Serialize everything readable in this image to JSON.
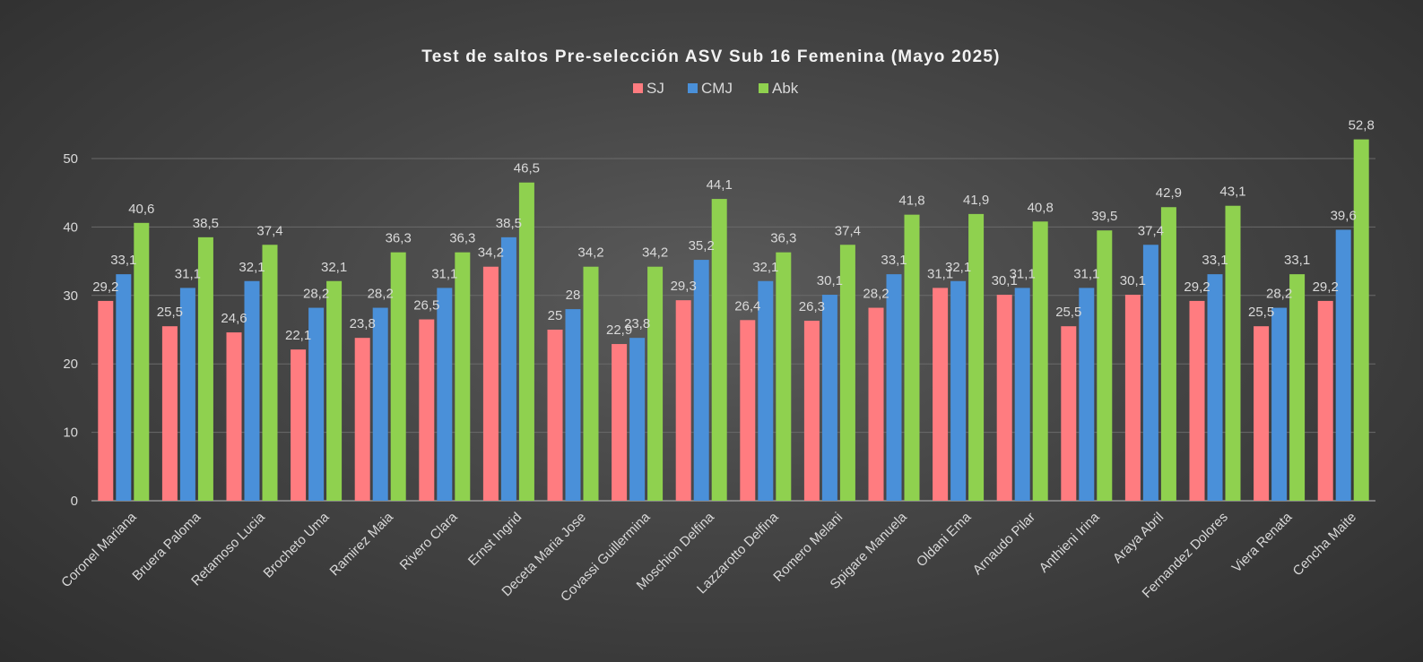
{
  "chart_data": {
    "type": "bar",
    "title": "Test de saltos Pre-selección ASV Sub 16 Femenina (Mayo 2025)",
    "xlabel": "",
    "ylabel": "",
    "ylim": [
      0,
      55
    ],
    "yticks": [
      0,
      10,
      20,
      30,
      40,
      50
    ],
    "grid": true,
    "legend_position": "top",
    "categories": [
      "Coronel Mariana",
      "Bruera Paloma",
      "Retamoso Lucia",
      "Brocheto Uma",
      "Ramirez Maia",
      "Rivero Clara",
      "Ernst Ingrid",
      "Deceta Maria Jose",
      "Covassi Guillermina",
      "Moschion Delfina",
      "Lazzarotto Delfina",
      "Romero Melani",
      "Spigare Manuela",
      "Oldani Ema",
      "Arnaudo Pilar",
      "Anthieni Irina",
      "Araya Abril",
      "Fernandez Dolores",
      "Viera Renata",
      "Cencha Maite"
    ],
    "series": [
      {
        "name": "SJ",
        "color": "#ff7c80",
        "values": [
          29.2,
          25.5,
          24.6,
          22.1,
          23.8,
          26.5,
          34.2,
          25,
          22.9,
          29.3,
          26.4,
          26.3,
          28.2,
          31.1,
          30.1,
          25.5,
          30.1,
          29.2,
          25.5,
          29.2
        ]
      },
      {
        "name": "CMJ",
        "color": "#4a90d9",
        "values": [
          33.1,
          31.1,
          32.1,
          28.2,
          28.2,
          31.1,
          38.5,
          28,
          23.8,
          35.2,
          32.1,
          30.1,
          33.1,
          32.1,
          31.1,
          31.1,
          37.4,
          33.1,
          28.2,
          39.6
        ]
      },
      {
        "name": "Abk",
        "color": "#8fd14f",
        "values": [
          40.6,
          38.5,
          37.4,
          32.1,
          36.3,
          36.3,
          46.5,
          34.2,
          34.2,
          44.1,
          36.3,
          37.4,
          41.8,
          41.9,
          40.8,
          39.5,
          42.9,
          43.1,
          33.1,
          52.8
        ]
      }
    ]
  }
}
